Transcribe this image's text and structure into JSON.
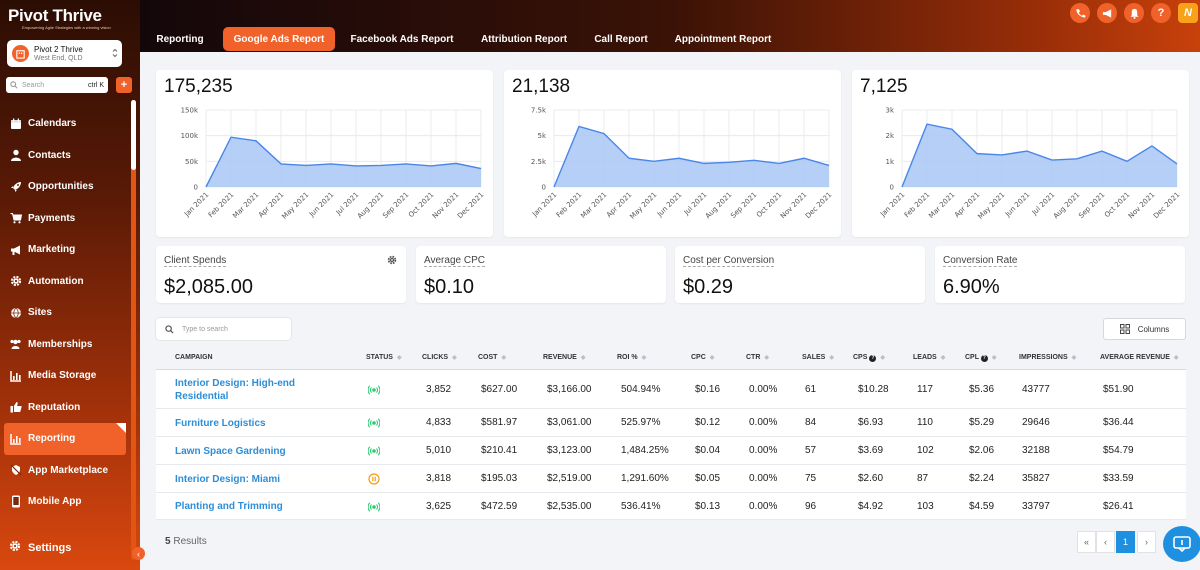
{
  "sidebar": {
    "logo_text": "Pivot Thrive",
    "logo_tagline": "Empowering Agile Strategies with a winning vision",
    "account": {
      "name": "Pivot 2 Thrive",
      "location": "West End, QLD"
    },
    "search": {
      "placeholder": "Search",
      "shortcut": "ctrl K"
    },
    "quick_add": "+",
    "items": [
      {
        "label": "Calendars",
        "icon": "calendar-icon"
      },
      {
        "label": "Contacts",
        "icon": "person-icon"
      },
      {
        "label": "Opportunities",
        "icon": "rocket-icon"
      },
      {
        "label": "Payments",
        "icon": "cart-icon"
      },
      {
        "label": "Marketing",
        "icon": "megaphone-icon"
      },
      {
        "label": "Automation",
        "icon": "cog-icon"
      },
      {
        "label": "Sites",
        "icon": "globe-icon"
      },
      {
        "label": "Memberships",
        "icon": "users-icon"
      },
      {
        "label": "Media Storage",
        "icon": "chart-icon"
      },
      {
        "label": "Reputation",
        "icon": "thumbs-up-icon"
      },
      {
        "label": "Reporting",
        "icon": "bar-chart-icon",
        "active": true
      },
      {
        "label": "App Marketplace",
        "icon": "marketplace-icon"
      },
      {
        "label": "Mobile App",
        "icon": "phone-icon"
      }
    ],
    "settings_label": "Settings"
  },
  "topbar": {
    "tabs": [
      {
        "label": "Reporting"
      },
      {
        "label": "Google Ads Report",
        "active": true
      },
      {
        "label": "Facebook Ads Report"
      },
      {
        "label": "Attribution Report"
      },
      {
        "label": "Call Report"
      },
      {
        "label": "Appointment Report"
      }
    ],
    "icons": [
      "phone-icon",
      "megaphone-icon",
      "bell-icon",
      "help-icon",
      "brand-icon"
    ]
  },
  "charts": [
    {
      "headline": "175,235",
      "chart_data": {
        "type": "area",
        "x": [
          "Jan 2021",
          "Feb 2021",
          "Mar 2021",
          "Apr 2021",
          "May 2021",
          "Jun 2021",
          "Jul 2021",
          "Aug 2021",
          "Sep 2021",
          "Oct 2021",
          "Nov 2021",
          "Dec 2021"
        ],
        "y_ticks": [
          "0",
          "50k",
          "100k",
          "150k"
        ],
        "ylim": [
          0,
          150000
        ],
        "values": [
          0,
          97000,
          90000,
          45000,
          42000,
          45000,
          41000,
          42000,
          45000,
          41000,
          46000,
          36000
        ]
      }
    },
    {
      "headline": "21,138",
      "chart_data": {
        "type": "area",
        "x": [
          "Jan 2021",
          "Feb 2021",
          "Mar 2021",
          "Apr 2021",
          "May 2021",
          "Jun 2021",
          "Jul 2021",
          "Aug 2021",
          "Sep 2021",
          "Oct 2021",
          "Nov 2021",
          "Dec 2021"
        ],
        "y_ticks": [
          "0",
          "2.5k",
          "5k",
          "7.5k"
        ],
        "ylim": [
          0,
          7500
        ],
        "values": [
          0,
          5900,
          5200,
          2800,
          2500,
          2800,
          2300,
          2400,
          2600,
          2300,
          2800,
          2100
        ]
      }
    },
    {
      "headline": "7,125",
      "chart_data": {
        "type": "area",
        "x": [
          "Jan 2021",
          "Feb 2021",
          "Mar 2021",
          "Apr 2021",
          "May 2021",
          "Jun 2021",
          "Jul 2021",
          "Aug 2021",
          "Sep 2021",
          "Oct 2021",
          "Nov 2021",
          "Dec 2021"
        ],
        "y_ticks": [
          "0",
          "1k",
          "2k",
          "3k"
        ],
        "ylim": [
          0,
          3000
        ],
        "values": [
          0,
          2450,
          2250,
          1300,
          1250,
          1400,
          1050,
          1100,
          1400,
          1000,
          1600,
          900
        ]
      }
    }
  ],
  "kpis": [
    {
      "label": "Client Spends",
      "value": "$2,085.00",
      "has_gear": true
    },
    {
      "label": "Average CPC",
      "value": "$0.10"
    },
    {
      "label": "Cost per Conversion",
      "value": "$0.29"
    },
    {
      "label": "Conversion Rate",
      "value": "6.90%"
    }
  ],
  "table": {
    "search_placeholder": "Type to search",
    "columns_button": "Columns",
    "headers": [
      "CAMPAIGN",
      "STATUS",
      "CLICKS",
      "COST",
      "REVENUE",
      "ROI %",
      "CPC",
      "CTR",
      "SALES",
      "CPS",
      "LEADS",
      "CPL",
      "IMPRESSIONS",
      "AVERAGE REVENUE"
    ],
    "rows": [
      {
        "campaign": "Interior Design: High-end Residential",
        "status": "active",
        "clicks": "3,852",
        "cost": "$627.00",
        "revenue": "$3,166.00",
        "roi": "504.94%",
        "cpc": "$0.16",
        "ctr": "0.00%",
        "sales": "61",
        "cps": "$10.28",
        "leads": "117",
        "cpl": "$5.36",
        "impressions": "43777",
        "avg_revenue": "$51.90"
      },
      {
        "campaign": "Furniture Logistics",
        "status": "active",
        "clicks": "4,833",
        "cost": "$581.97",
        "revenue": "$3,061.00",
        "roi": "525.97%",
        "cpc": "$0.12",
        "ctr": "0.00%",
        "sales": "84",
        "cps": "$6.93",
        "leads": "110",
        "cpl": "$5.29",
        "impressions": "29646",
        "avg_revenue": "$36.44"
      },
      {
        "campaign": "Lawn Space Gardening",
        "status": "active",
        "clicks": "5,010",
        "cost": "$210.41",
        "revenue": "$3,123.00",
        "roi": "1,484.25%",
        "cpc": "$0.04",
        "ctr": "0.00%",
        "sales": "57",
        "cps": "$3.69",
        "leads": "102",
        "cpl": "$2.06",
        "impressions": "32188",
        "avg_revenue": "$54.79"
      },
      {
        "campaign": "Interior Design: Miami",
        "status": "paused",
        "clicks": "3,818",
        "cost": "$195.03",
        "revenue": "$2,519.00",
        "roi": "1,291.60%",
        "cpc": "$0.05",
        "ctr": "0.00%",
        "sales": "75",
        "cps": "$2.60",
        "leads": "87",
        "cpl": "$2.24",
        "impressions": "35827",
        "avg_revenue": "$33.59"
      },
      {
        "campaign": "Planting and Trimming",
        "status": "active",
        "clicks": "3,625",
        "cost": "$472.59",
        "revenue": "$2,535.00",
        "roi": "536.41%",
        "cpc": "$0.13",
        "ctr": "0.00%",
        "sales": "96",
        "cps": "$4.92",
        "leads": "103",
        "cpl": "$4.59",
        "impressions": "33797",
        "avg_revenue": "$26.41"
      }
    ],
    "results_count": "5",
    "results_label": "Results",
    "pagination": {
      "first": "«",
      "prev": "‹",
      "current": "1",
      "next": "›",
      "last": "»"
    }
  },
  "colors": {
    "accent": "#f0622a",
    "link": "#2d8ed8",
    "status_active": "#2ecc71",
    "status_paused": "#f39c12",
    "chart_fill": "#a9c7f5",
    "chart_line": "#4a86e8"
  }
}
